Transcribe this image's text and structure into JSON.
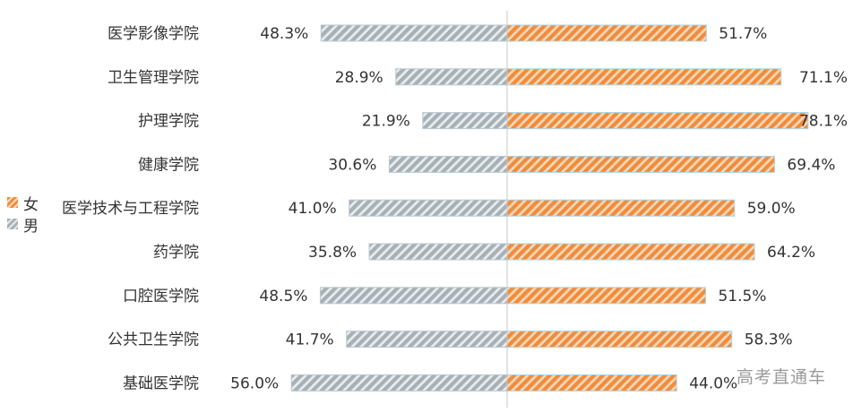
{
  "chart_data": {
    "type": "bar",
    "orientation": "horizontal-diverging",
    "categories": [
      "医学影像学院",
      "卫生管理学院",
      "护理学院",
      "健康学院",
      "医学技术与工程学院",
      "药学院",
      "口腔医学院",
      "公共卫生学院",
      "基础医学院"
    ],
    "series": [
      {
        "name": "男",
        "values": [
          48.3,
          28.9,
          21.9,
          30.6,
          41.0,
          35.8,
          48.5,
          41.7,
          56.0
        ],
        "labels": [
          "48.3%",
          "28.9%",
          "21.9%",
          "30.6%",
          "41.0%",
          "35.8%",
          "48.5%",
          "41.7%",
          "56.0%"
        ],
        "color": "#a7b0b5"
      },
      {
        "name": "女",
        "values": [
          51.7,
          71.1,
          78.1,
          69.4,
          59.0,
          64.2,
          51.5,
          58.3,
          44.0
        ],
        "labels": [
          "51.7%",
          "71.1%",
          "78.1%",
          "69.4%",
          "59.0%",
          "64.2%",
          "51.5%",
          "58.3%",
          "44.0%"
        ],
        "color": "#f08c3c"
      }
    ],
    "legend": {
      "position": "left",
      "items": [
        "女",
        "男"
      ]
    },
    "unit": "%"
  },
  "watermark": "高考直通车"
}
